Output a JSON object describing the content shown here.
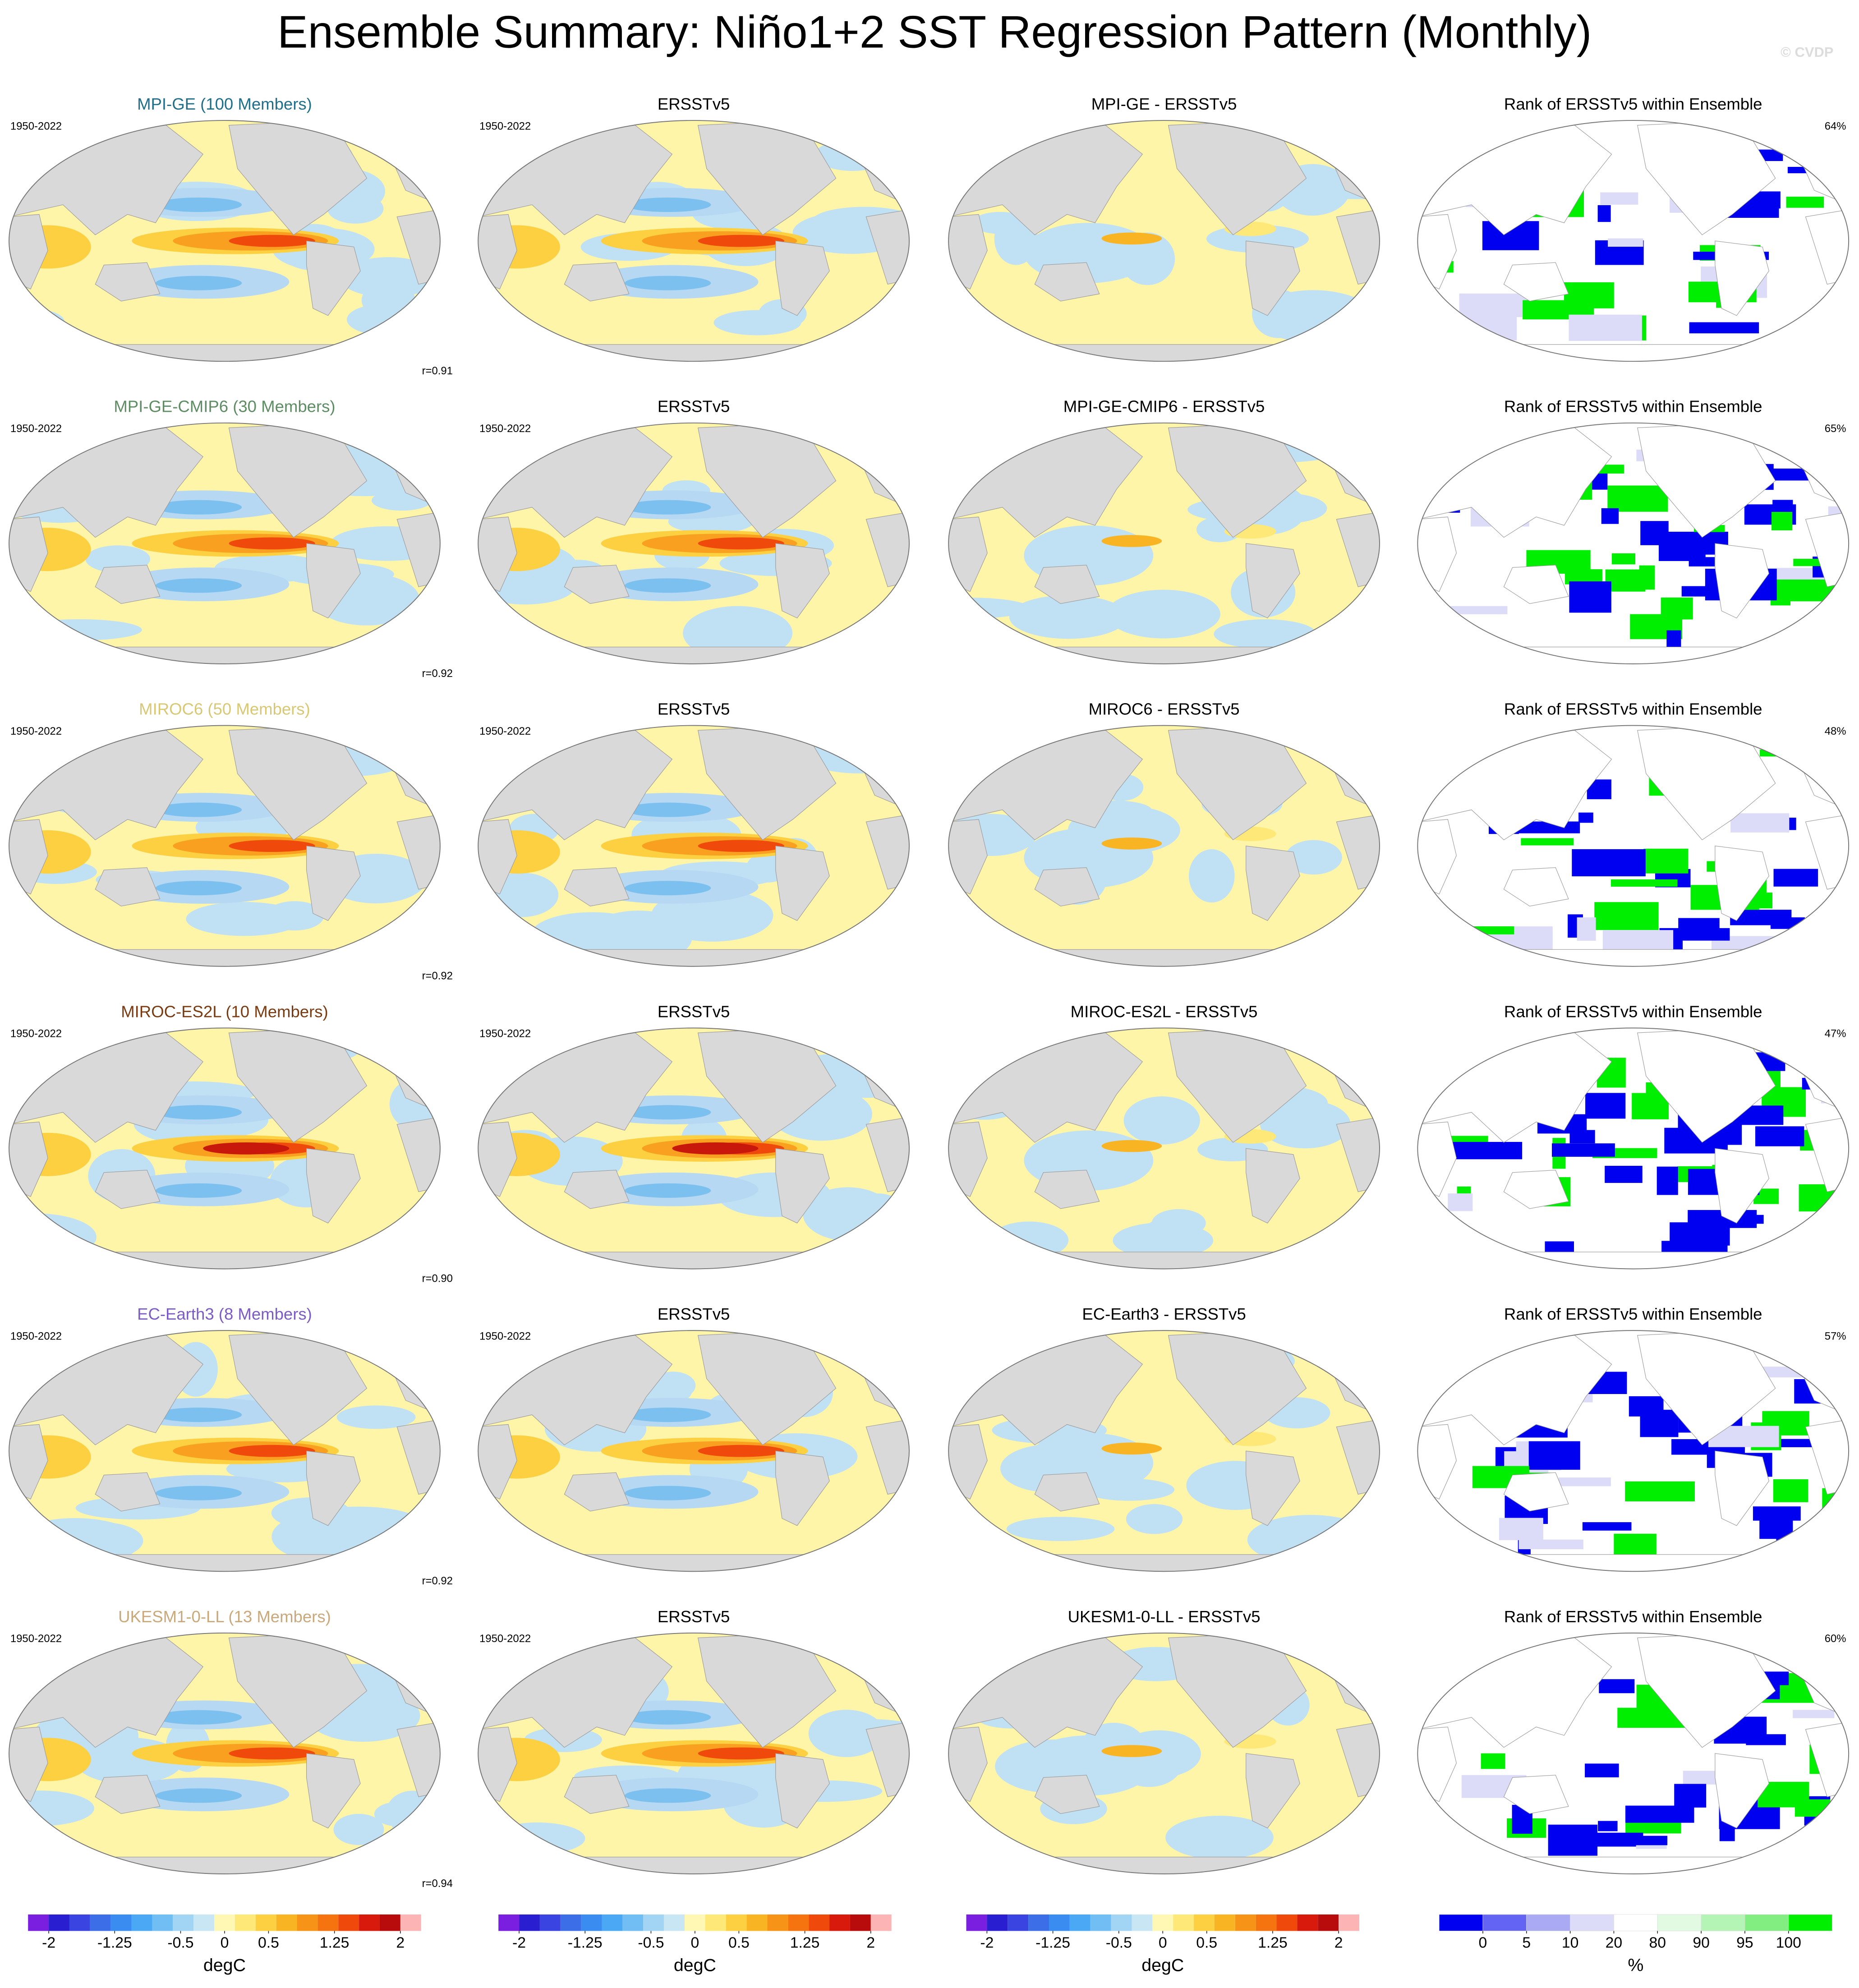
{
  "title": "Ensemble Summary: Niño1+2 SST Regression Pattern (Monthly)",
  "watermark": "© CVDP",
  "rows": [
    {
      "model": {
        "title": "MPI-GE (100 Members)",
        "color": "#1f6f8b",
        "period": "1950-2022",
        "stat": "r=0.91"
      },
      "obs": {
        "title": "ERSSTv5",
        "period": "1950-2022"
      },
      "diff": {
        "title": "MPI-GE - ERSSTv5"
      },
      "rank": {
        "title": "Rank of ERSSTv5 within Ensemble",
        "stat": "64%"
      }
    },
    {
      "model": {
        "title": "MPI-GE-CMIP6 (30 Members)",
        "color": "#5e8c63",
        "period": "1950-2022",
        "stat": "r=0.92"
      },
      "obs": {
        "title": "ERSSTv5",
        "period": "1950-2022"
      },
      "diff": {
        "title": "MPI-GE-CMIP6 - ERSSTv5"
      },
      "rank": {
        "title": "Rank of ERSSTv5 within Ensemble",
        "stat": "65%"
      }
    },
    {
      "model": {
        "title": "MIROC6 (50 Members)",
        "color": "#d8c874",
        "period": "1950-2022",
        "stat": "r=0.92"
      },
      "obs": {
        "title": "ERSSTv5",
        "period": "1950-2022"
      },
      "diff": {
        "title": "MIROC6 - ERSSTv5"
      },
      "rank": {
        "title": "Rank of ERSSTv5 within Ensemble",
        "stat": "48%"
      }
    },
    {
      "model": {
        "title": "MIROC-ES2L (10 Members)",
        "color": "#7a3b12",
        "period": "1950-2022",
        "stat": "r=0.90"
      },
      "obs": {
        "title": "ERSSTv5",
        "period": "1950-2022"
      },
      "diff": {
        "title": "MIROC-ES2L - ERSSTv5"
      },
      "rank": {
        "title": "Rank of ERSSTv5 within Ensemble",
        "stat": "47%"
      }
    },
    {
      "model": {
        "title": "EC-Earth3 (8 Members)",
        "color": "#7b5cc4",
        "period": "1950-2022",
        "stat": "r=0.92"
      },
      "obs": {
        "title": "ERSSTv5",
        "period": "1950-2022"
      },
      "diff": {
        "title": "EC-Earth3 - ERSSTv5"
      },
      "rank": {
        "title": "Rank of ERSSTv5 within Ensemble",
        "stat": "57%"
      }
    },
    {
      "model": {
        "title": "UKESM1-0-LL (13 Members)",
        "color": "#c9a97c",
        "period": "1950-2022",
        "stat": "r=0.94"
      },
      "obs": {
        "title": "ERSSTv5",
        "period": "1950-2022"
      },
      "diff": {
        "title": "UKESM1-0-LL - ERSSTv5"
      },
      "rank": {
        "title": "Rank of ERSSTv5 within Ensemble",
        "stat": "60%"
      }
    }
  ],
  "colorbars": [
    {
      "colors": [
        "#7a1fe0",
        "#2a1fd0",
        "#3a44e0",
        "#3c6ee8",
        "#3a8cf0",
        "#4aa8f4",
        "#70bef4",
        "#a2d4f4",
        "#c8e6f4",
        "#fff8b4",
        "#fde878",
        "#fcd040",
        "#f9b424",
        "#f79418",
        "#f57410",
        "#ef4a0c",
        "#d81a0c",
        "#b80c0c",
        "#fcb4b4"
      ],
      "ticks": [
        -2,
        -1.25,
        -0.5,
        0,
        0.5,
        1.25,
        2
      ],
      "unit": "degC"
    },
    {
      "colors": [
        "#7a1fe0",
        "#2a1fd0",
        "#3a44e0",
        "#3c6ee8",
        "#3a8cf0",
        "#4aa8f4",
        "#70bef4",
        "#a2d4f4",
        "#c8e6f4",
        "#fff8b4",
        "#fde878",
        "#fcd040",
        "#f9b424",
        "#f79418",
        "#f57410",
        "#ef4a0c",
        "#d81a0c",
        "#b80c0c",
        "#fcb4b4"
      ],
      "ticks": [
        -2,
        -1.25,
        -0.5,
        0,
        0.5,
        1.25,
        2
      ],
      "unit": "degC"
    },
    {
      "colors": [
        "#7a1fe0",
        "#2a1fd0",
        "#3a44e0",
        "#3c6ee8",
        "#3a8cf0",
        "#4aa8f4",
        "#70bef4",
        "#a2d4f4",
        "#c8e6f4",
        "#fff8b4",
        "#fde878",
        "#fcd040",
        "#f9b424",
        "#f79418",
        "#f57410",
        "#ef4a0c",
        "#d81a0c",
        "#b80c0c",
        "#fcb4b4"
      ],
      "ticks": [
        -2,
        -1.25,
        -0.5,
        0,
        0.5,
        1.25,
        2
      ],
      "unit": "degC"
    },
    {
      "colors": [
        "#0000f0",
        "#6464f4",
        "#aaaaf4",
        "#dcdcf8",
        "#ffffff",
        "#e2fae2",
        "#b4f4b4",
        "#82ee82",
        "#00ee00"
      ],
      "ticks": [
        0,
        5,
        10,
        20,
        80,
        90,
        95,
        100
      ],
      "unit": "%"
    }
  ]
}
